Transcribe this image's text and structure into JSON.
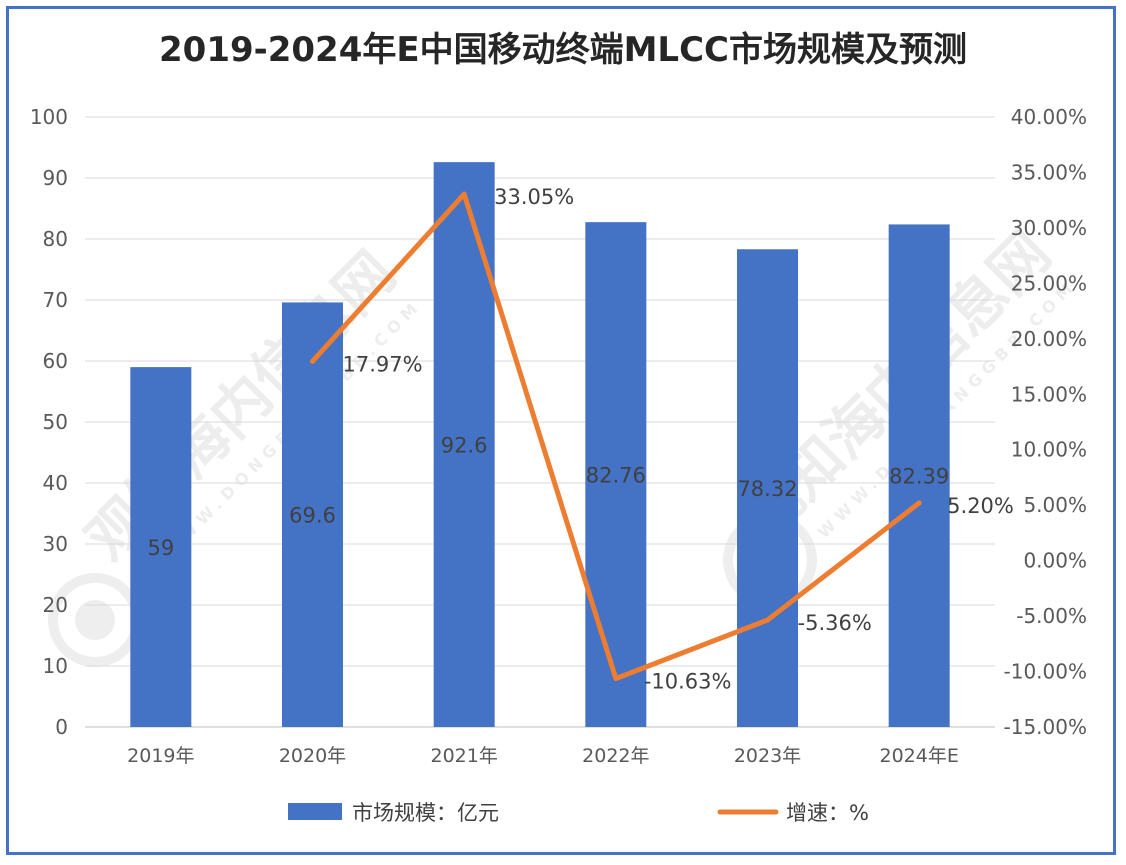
{
  "title": "2019-2024年E中国移动终端MLCC市场规模及预测",
  "chart_data": {
    "type": "bar+line",
    "categories": [
      "2019年",
      "2020年",
      "2021年",
      "2022年",
      "2023年",
      "2024年E"
    ],
    "series": [
      {
        "name": "市场规模：亿元",
        "type": "bar",
        "axis": "left",
        "color": "#4472c4",
        "values": [
          59,
          69.6,
          92.6,
          82.76,
          78.32,
          82.39
        ],
        "labels": [
          "59",
          "69.6",
          "92.6",
          "82.76",
          "78.32",
          "82.39"
        ]
      },
      {
        "name": "增速：%",
        "type": "line",
        "axis": "right",
        "color": "#ed7d31",
        "values": [
          null,
          17.97,
          33.05,
          -10.63,
          -5.36,
          5.2
        ],
        "labels": [
          "",
          "17.97%",
          "33.05%",
          "-10.63%",
          "-5.36%",
          "5.20%"
        ]
      }
    ],
    "y_left": {
      "min": 0,
      "max": 100,
      "step": 10,
      "ticks": [
        "0",
        "10",
        "20",
        "30",
        "40",
        "50",
        "60",
        "70",
        "80",
        "90",
        "100"
      ]
    },
    "y_right": {
      "min": -15,
      "max": 40,
      "step": 5,
      "ticks": [
        "-15.00%",
        "-10.00%",
        "-5.00%",
        "0.00%",
        "5.00%",
        "10.00%",
        "15.00%",
        "20.00%",
        "25.00%",
        "30.00%",
        "35.00%",
        "40.00%"
      ]
    },
    "grid": true,
    "legend_position": "bottom"
  },
  "watermark": {
    "cn": "观知海内信息网",
    "en": "WWW.DONGFANGGBB.COM"
  },
  "colors": {
    "frame": "#4472c4",
    "bar": "#4472c4",
    "line": "#ed7d31",
    "grid": "#d9d9d9"
  }
}
